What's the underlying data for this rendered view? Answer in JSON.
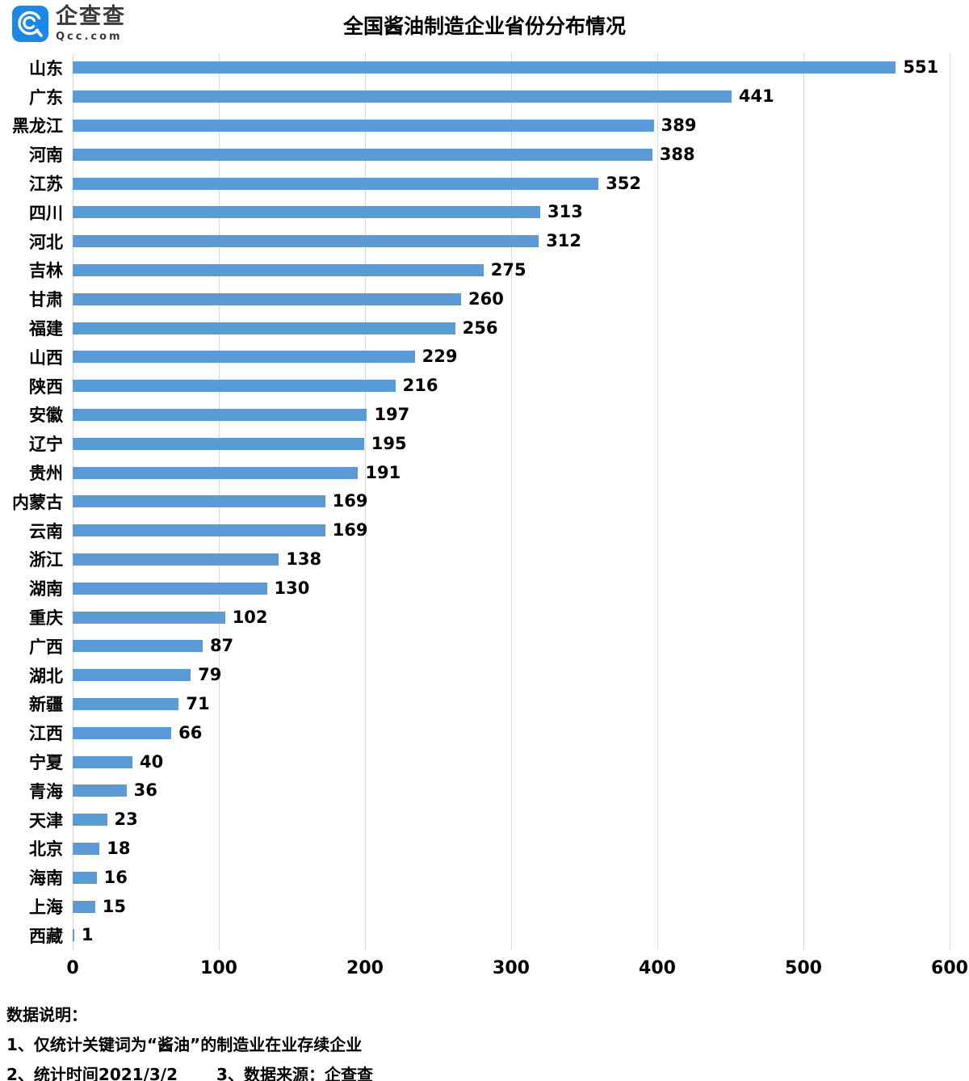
{
  "header": {
    "logo": {
      "name": "企查查",
      "domain": "Qcc.com",
      "brand_color": "#1b88e8"
    },
    "title": "全国酱油制造企业省份分布情况"
  },
  "chart_data": {
    "type": "bar",
    "orientation": "horizontal",
    "title": "全国酱油制造企业省份分布情况",
    "categories": [
      "山东",
      "广东",
      "黑龙江",
      "河南",
      "江苏",
      "四川",
      "河北",
      "吉林",
      "甘肃",
      "福建",
      "山西",
      "陕西",
      "安徽",
      "辽宁",
      "贵州",
      "内蒙古",
      "云南",
      "浙江",
      "湖南",
      "重庆",
      "广西",
      "湖北",
      "新疆",
      "江西",
      "宁夏",
      "青海",
      "天津",
      "北京",
      "海南",
      "上海",
      "西藏"
    ],
    "values": [
      551,
      441,
      389,
      388,
      352,
      313,
      312,
      275,
      260,
      256,
      229,
      216,
      197,
      195,
      191,
      169,
      169,
      138,
      130,
      102,
      87,
      79,
      71,
      66,
      40,
      36,
      23,
      18,
      16,
      15,
      1
    ],
    "xlim": [
      0,
      600
    ],
    "x_ticks": [
      0,
      100,
      200,
      300,
      400,
      500,
      600
    ],
    "bar_color": "#5b9bd5",
    "gridline_color": "#d9d9d9",
    "grid": "vertical-only",
    "value_labels": "end-of-bar",
    "legend": "none"
  },
  "footer": {
    "heading": "数据说明：",
    "note1": "1、仅统计关键词为“酱油”的制造业在业存续企业",
    "note2": "2、统计时间2021/3/2",
    "note3": "3、数据来源：企查查"
  }
}
